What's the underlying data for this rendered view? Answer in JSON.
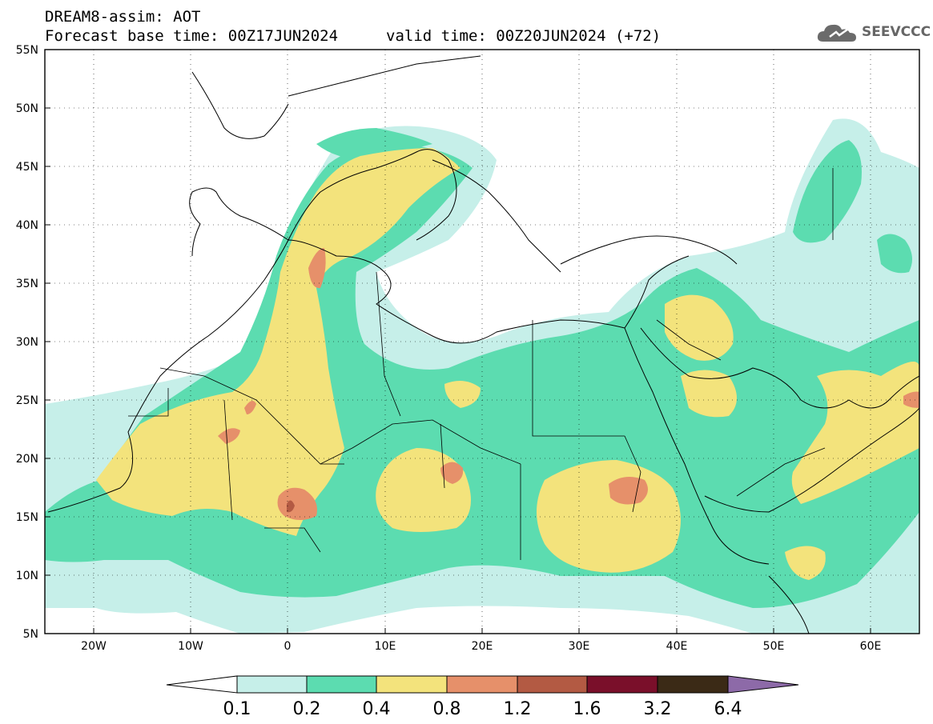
{
  "header": {
    "title": "DREAM8-assim: AOT",
    "base_time": "Forecast base time: 00Z17JUN2024",
    "valid_time": "valid time: 00Z20JUN2024 (+72)"
  },
  "logo": {
    "text": "SEEVCCC",
    "icon": "cloud-icon"
  },
  "map": {
    "lat_labels": [
      "55N",
      "50N",
      "45N",
      "40N",
      "35N",
      "30N",
      "25N",
      "20N",
      "15N",
      "10N",
      "5N"
    ],
    "lon_labels": [
      "20W",
      "10W",
      "0",
      "10E",
      "20E",
      "30E",
      "40E",
      "50E",
      "60E"
    ],
    "extent": {
      "lon": [
        -25,
        65
      ],
      "lat": [
        5,
        55
      ]
    }
  },
  "colorbar": {
    "labels": [
      "0.1",
      "0.2",
      "0.4",
      "0.8",
      "1.2",
      "1.6",
      "3.2",
      "6.4"
    ],
    "colors": [
      "#c6efe9",
      "#5cdcb0",
      "#f3e37c",
      "#e6906a",
      "#b35a43",
      "#7a0f2a",
      "#3b2a16"
    ],
    "over_color": "#8d6aa8",
    "under_color": "#ffffff"
  }
}
